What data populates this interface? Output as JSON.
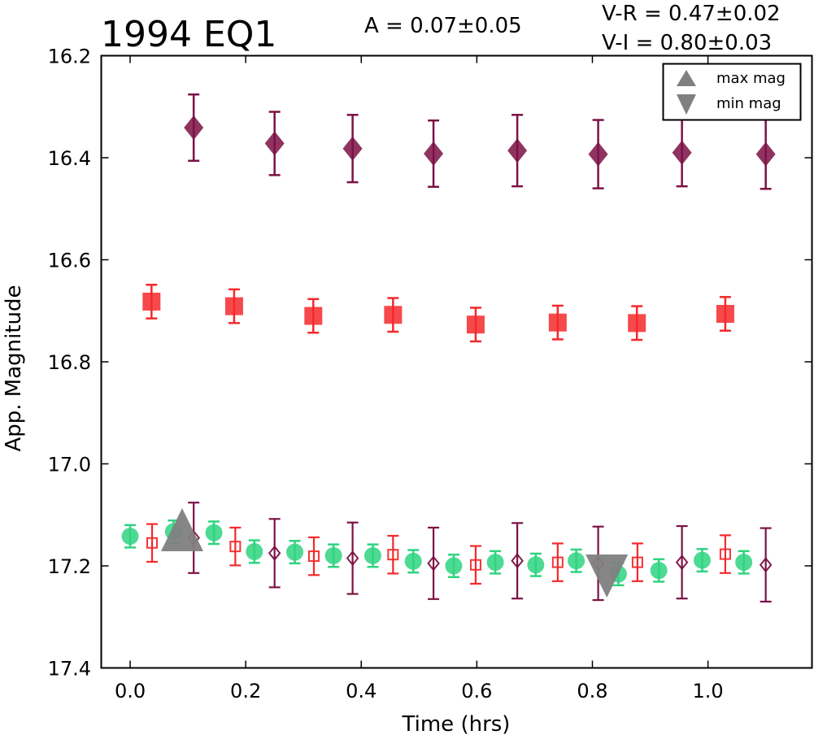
{
  "chart_data": {
    "type": "scatter",
    "title": "1994 EQ1",
    "annotations": {
      "amplitude": "A  = 0.07±0.05",
      "v_r": "V-R = 0.47±0.02",
      "v_i": "V-I  = 0.80±0.03"
    },
    "xlabel": "Time (hrs)",
    "ylabel": "App. Magnitude",
    "xlim": [
      -0.05,
      1.18
    ],
    "ylim": [
      17.4,
      16.2
    ],
    "y_inverted": true,
    "grid": false,
    "legend_position": "top-right",
    "xticks": [
      "0.0",
      "0.2",
      "0.4",
      "0.6",
      "0.8",
      "1.0"
    ],
    "xtick_values": [
      0.0,
      0.2,
      0.4,
      0.6,
      0.8,
      1.0
    ],
    "yticks": [
      "16.2",
      "16.4",
      "16.6",
      "16.8",
      "17.0",
      "17.2",
      "17.4"
    ],
    "ytick_values": [
      16.2,
      16.4,
      16.6,
      16.8,
      17.0,
      17.2,
      17.4
    ],
    "legend": [
      {
        "label": "max mag",
        "marker": "triangle-up",
        "color": "#808080"
      },
      {
        "label": "min mag",
        "marker": "triangle-down",
        "color": "#808080"
      }
    ],
    "series": [
      {
        "marker": "diamond",
        "color": "#7b1145",
        "filled": true,
        "x": [
          0.11,
          0.25,
          0.385,
          0.525,
          0.67,
          0.81,
          0.955,
          1.1
        ],
        "y": [
          16.341,
          16.372,
          16.382,
          16.392,
          16.386,
          16.393,
          16.39,
          16.393
        ],
        "err": [
          0.065,
          0.062,
          0.066,
          0.065,
          0.07,
          0.067,
          0.066,
          0.068
        ]
      },
      {
        "marker": "square",
        "color": "#f4292b",
        "filled": true,
        "x": [
          0.037,
          0.18,
          0.317,
          0.455,
          0.598,
          0.74,
          0.877,
          1.03
        ],
        "y": [
          16.682,
          16.691,
          16.71,
          16.708,
          16.727,
          16.723,
          16.724,
          16.706
        ],
        "err": [
          0.033,
          0.033,
          0.033,
          0.033,
          0.033,
          0.033,
          0.033,
          0.033
        ]
      },
      {
        "marker": "circle",
        "color": "#2fd480",
        "filled": true,
        "x": [
          0.0,
          0.075,
          0.145,
          0.215,
          0.285,
          0.352,
          0.42,
          0.49,
          0.56,
          0.632,
          0.702,
          0.772,
          0.845,
          0.915,
          0.99,
          1.062
        ],
        "y": [
          17.142,
          17.133,
          17.135,
          17.172,
          17.173,
          17.18,
          17.18,
          17.191,
          17.2,
          17.193,
          17.198,
          17.19,
          17.216,
          17.209,
          17.189,
          17.193
        ],
        "err": [
          0.022,
          0.022,
          0.022,
          0.022,
          0.022,
          0.022,
          0.022,
          0.022,
          0.022,
          0.022,
          0.022,
          0.022,
          0.022,
          0.022,
          0.022,
          0.022
        ]
      },
      {
        "marker": "square",
        "color": "#f4292b",
        "filled": false,
        "x": [
          0.038,
          0.182,
          0.318,
          0.455,
          0.598,
          0.74,
          0.878,
          1.03
        ],
        "y": [
          17.155,
          17.162,
          17.181,
          17.178,
          17.198,
          17.193,
          17.193,
          17.177
        ],
        "err": [
          0.037,
          0.037,
          0.037,
          0.037,
          0.037,
          0.037,
          0.037,
          0.037
        ]
      },
      {
        "marker": "diamond",
        "color": "#7b1145",
        "filled": false,
        "x": [
          0.11,
          0.25,
          0.385,
          0.525,
          0.67,
          0.81,
          0.955,
          1.1
        ],
        "y": [
          17.145,
          17.175,
          17.185,
          17.195,
          17.19,
          17.195,
          17.193,
          17.198
        ],
        "err": [
          0.069,
          0.067,
          0.07,
          0.07,
          0.074,
          0.072,
          0.071,
          0.072
        ]
      },
      {
        "marker": "triangle-up",
        "color": "#808080",
        "filled": true,
        "name": "max mag",
        "x": [
          0.09
        ],
        "y": [
          17.133
        ],
        "err": [
          0
        ]
      },
      {
        "marker": "triangle-down",
        "color": "#808080",
        "filled": true,
        "name": "min mag",
        "x": [
          0.825
        ],
        "y": [
          17.216
        ],
        "err": [
          0
        ]
      }
    ]
  }
}
